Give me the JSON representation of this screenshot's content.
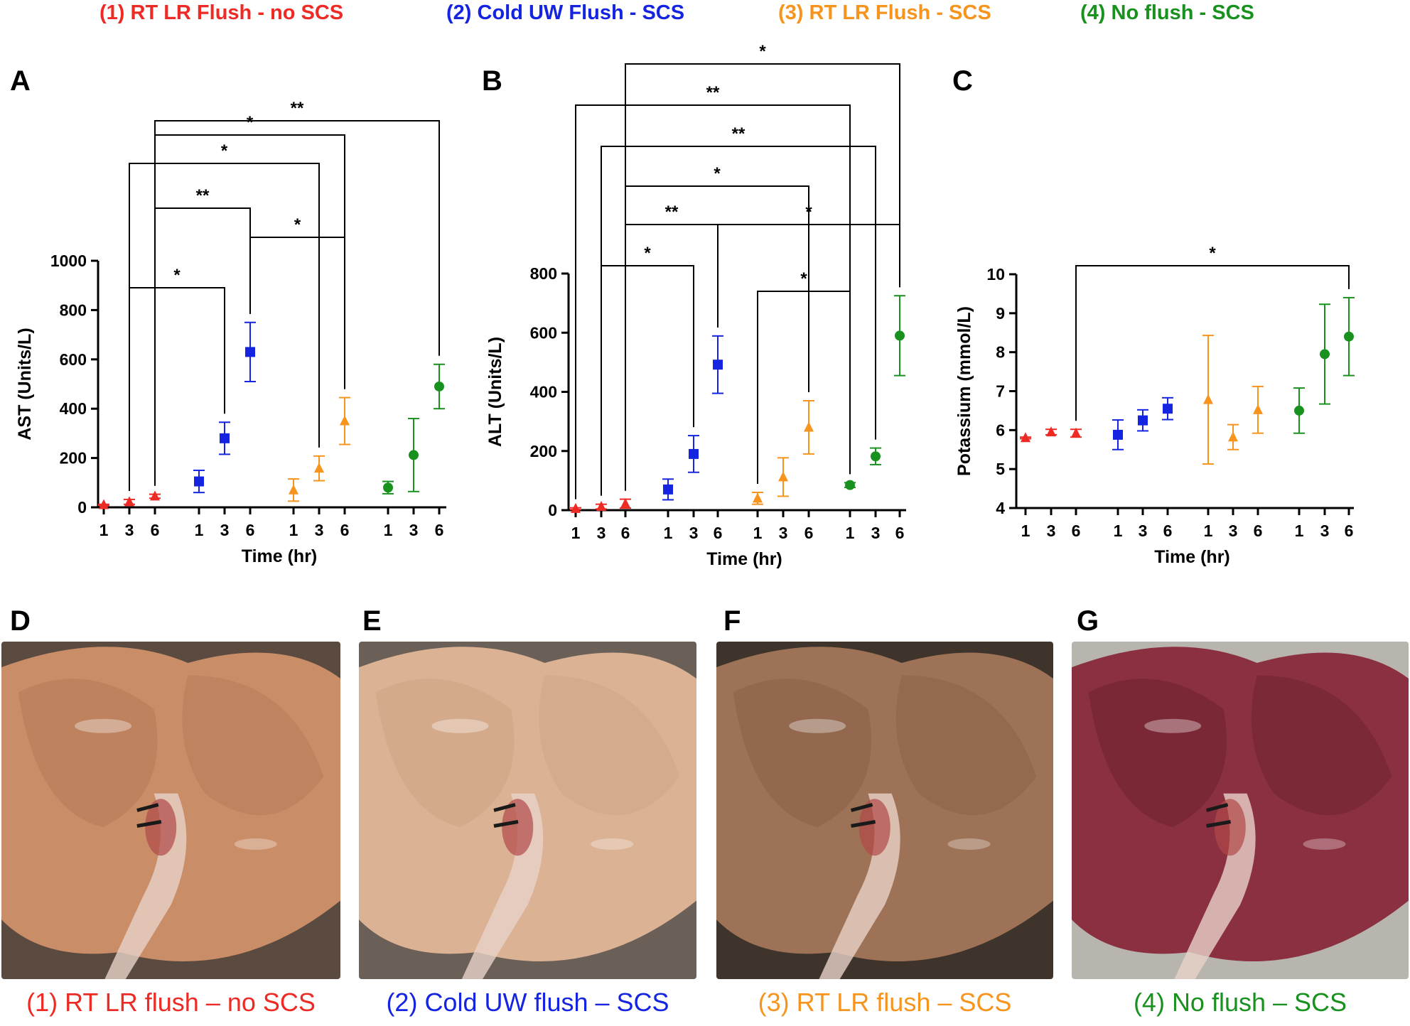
{
  "legend": [
    {
      "label": "(1) RT LR Flush - no SCS",
      "color": "#ee2a24"
    },
    {
      "label": "(2) Cold UW Flush - SCS",
      "color": "#1424e0"
    },
    {
      "label": "(3) RT LR Flush - SCS",
      "color": "#f7941d"
    },
    {
      "label": "(4) No flush - SCS",
      "color": "#19911f"
    }
  ],
  "panel_letters": {
    "A": "A",
    "B": "B",
    "C": "C",
    "D": "D",
    "E": "E",
    "F": "F",
    "G": "G"
  },
  "chart_data": [
    {
      "panel": "A",
      "type": "scatter",
      "ylabel": "AST (Units/L)",
      "xlabel": "Time (hr)",
      "ylim": [
        0,
        1000
      ],
      "yticks": [
        0,
        200,
        400,
        600,
        800,
        1000
      ],
      "tick_labels": [
        "1",
        "3",
        "6",
        "1",
        "3",
        "6",
        "1",
        "3",
        "6",
        "1",
        "3",
        "6"
      ],
      "series": [
        {
          "name": "(1) RT LR Flush - no SCS",
          "marker": "triangle",
          "values": [
            10,
            22,
            45
          ],
          "err_low": [
            2,
            10,
            8
          ],
          "err_high": [
            2,
            10,
            8
          ]
        },
        {
          "name": "(2) Cold UW Flush - SCS",
          "marker": "square",
          "values": [
            105,
            280,
            630
          ],
          "err_low": [
            45,
            65,
            120
          ],
          "err_high": [
            45,
            65,
            120
          ]
        },
        {
          "name": "(3) RT LR Flush - SCS",
          "marker": "triangle",
          "values": [
            70,
            158,
            350
          ],
          "err_low": [
            45,
            50,
            95
          ],
          "err_high": [
            45,
            50,
            95
          ]
        },
        {
          "name": "(4) No flush - SCS",
          "marker": "circle",
          "values": [
            80,
            212,
            490
          ],
          "err_low": [
            25,
            148,
            90
          ],
          "err_high": [
            25,
            148,
            90
          ]
        }
      ],
      "brackets": [
        {
          "from": 1,
          "to": 4,
          "label": "*"
        },
        {
          "from": 5,
          "to": 8,
          "label": "*"
        },
        {
          "from": 2,
          "to": 5,
          "label": "**"
        },
        {
          "from": 1,
          "to": 7,
          "label": "*"
        },
        {
          "from": 2,
          "to": 8,
          "label": "*"
        },
        {
          "from": 2,
          "to": 11,
          "label": "**"
        }
      ]
    },
    {
      "panel": "B",
      "type": "scatter",
      "ylabel": "ALT (Units/L)",
      "xlabel": "Time (hr)",
      "ylim": [
        0,
        800
      ],
      "yticks": [
        0,
        200,
        400,
        600,
        800
      ],
      "tick_labels": [
        "1",
        "3",
        "6",
        "1",
        "3",
        "6",
        "1",
        "3",
        "6",
        "1",
        "3",
        "6"
      ],
      "series": [
        {
          "name": "(1) RT LR Flush - no SCS",
          "marker": "triangle",
          "values": [
            5,
            12,
            22
          ],
          "err_low": [
            3,
            8,
            15
          ],
          "err_high": [
            3,
            8,
            15
          ]
        },
        {
          "name": "(2) Cold UW Flush - SCS",
          "marker": "square",
          "values": [
            70,
            190,
            492
          ],
          "err_low": [
            35,
            62,
            97
          ],
          "err_high": [
            35,
            62,
            97
          ]
        },
        {
          "name": "(3) RT LR Flush - SCS",
          "marker": "triangle",
          "values": [
            40,
            112,
            280
          ],
          "err_low": [
            20,
            65,
            90
          ],
          "err_high": [
            20,
            65,
            90
          ]
        },
        {
          "name": "(4) No flush - SCS",
          "marker": "circle",
          "values": [
            85,
            182,
            590
          ],
          "err_low": [
            8,
            28,
            135
          ],
          "err_high": [
            8,
            28,
            135
          ]
        }
      ],
      "brackets": [
        {
          "from": 1,
          "to": 4,
          "label": "*"
        },
        {
          "from": 6,
          "to": 9,
          "label": "*"
        },
        {
          "from": 2,
          "to": 5,
          "label": "**"
        },
        {
          "from": 5,
          "to": 11,
          "label": "*"
        },
        {
          "from": 2,
          "to": 8,
          "label": "*"
        },
        {
          "from": 1,
          "to": 10,
          "label": "**"
        },
        {
          "from": 0,
          "to": 9,
          "label": "**"
        },
        {
          "from": 2,
          "to": 11,
          "label": "*"
        }
      ]
    },
    {
      "panel": "C",
      "type": "scatter",
      "ylabel": "Potassium (mmol/L)",
      "xlabel": "Time (hr)",
      "ylim": [
        4,
        10
      ],
      "yticks": [
        4,
        5,
        6,
        7,
        8,
        9,
        10
      ],
      "tick_labels": [
        "1",
        "3",
        "6",
        "1",
        "3",
        "6",
        "1",
        "3",
        "6",
        "1",
        "3",
        "6"
      ],
      "series": [
        {
          "name": "(1) RT LR Flush - no SCS",
          "marker": "triangle",
          "values": [
            5.8,
            5.95,
            5.92
          ],
          "err_low": [
            0.02,
            0.07,
            0.1
          ],
          "err_high": [
            0.02,
            0.07,
            0.1
          ]
        },
        {
          "name": "(2) Cold UW Flush - SCS",
          "marker": "square",
          "values": [
            5.88,
            6.25,
            6.55
          ],
          "err_low": [
            0.38,
            0.27,
            0.28
          ],
          "err_high": [
            0.38,
            0.27,
            0.28
          ]
        },
        {
          "name": "(3) RT LR Flush - SCS",
          "marker": "triangle",
          "values": [
            6.78,
            5.82,
            6.52
          ],
          "err_low": [
            1.65,
            0.32,
            0.6
          ],
          "err_high": [
            1.65,
            0.32,
            0.6
          ]
        },
        {
          "name": "(4) No flush - SCS",
          "marker": "circle",
          "values": [
            6.5,
            7.95,
            8.4
          ],
          "err_low": [
            0.58,
            1.28,
            1.0
          ],
          "err_high": [
            0.58,
            1.28,
            1.0
          ]
        }
      ],
      "brackets": [
        {
          "from": 2,
          "to": 11,
          "label": "*"
        }
      ]
    }
  ],
  "photos": [
    {
      "letter": "D",
      "caption": "(1) RT LR flush – no SCS",
      "color": "#ee2a24",
      "tissue": "#c98e68",
      "tissue_dark": "#a86c4c",
      "bg": "#5a4a40"
    },
    {
      "letter": "E",
      "caption": "(2) Cold UW flush – SCS",
      "color": "#1424e0",
      "tissue": "#dcb294",
      "tissue_dark": "#c59a7c",
      "bg": "#6a6058"
    },
    {
      "letter": "F",
      "caption": "(3) RT LR flush – SCS",
      "color": "#f7941d",
      "tissue": "#9e7256",
      "tissue_dark": "#7e563e",
      "bg": "#3e342c"
    },
    {
      "letter": "G",
      "caption": "(4) No flush – SCS",
      "color": "#19911f",
      "tissue": "#8a3040",
      "tissue_dark": "#5e1a26",
      "bg": "#b8b4ae"
    }
  ]
}
